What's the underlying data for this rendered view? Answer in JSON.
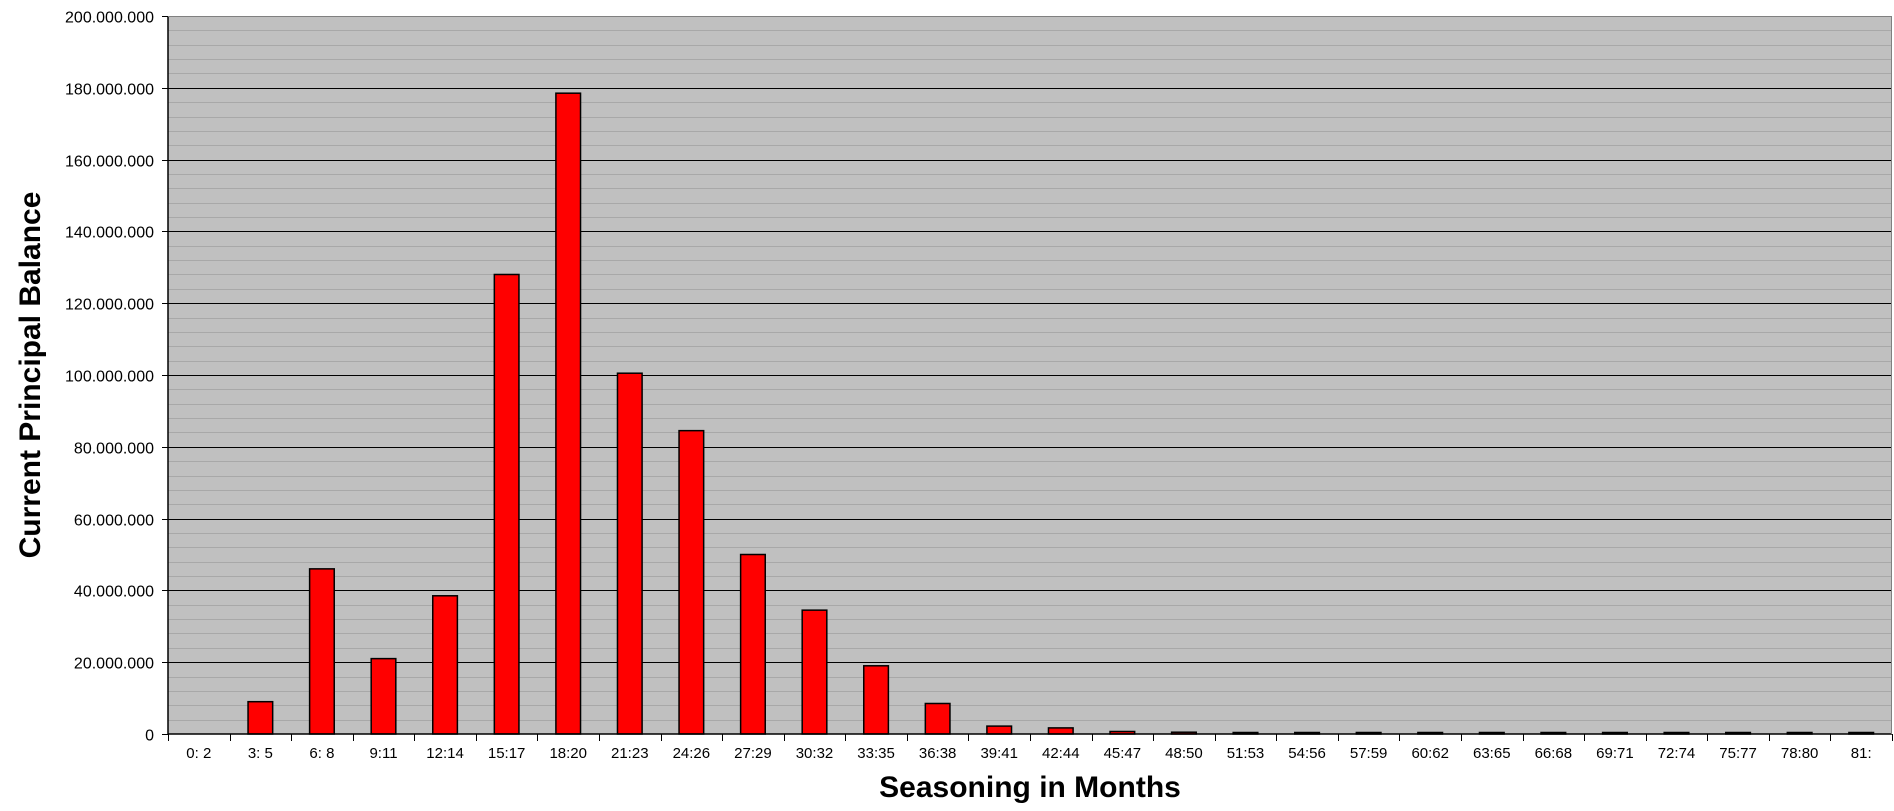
{
  "chart_data": {
    "type": "bar",
    "title": "",
    "xlabel": "Seasoning in Months",
    "ylabel": "Current Principal Balance",
    "ylim": [
      0,
      200000000
    ],
    "y_ticks": [
      0,
      20000000,
      40000000,
      60000000,
      80000000,
      100000000,
      120000000,
      140000000,
      160000000,
      180000000,
      200000000
    ],
    "y_tick_labels": [
      "0",
      "20.000.000",
      "40.000.000",
      "60.000.000",
      "80.000.000",
      "100.000.000",
      "120.000.000",
      "140.000.000",
      "160.000.000",
      "180.000.000",
      "200.000.000"
    ],
    "categories": [
      "0: 2",
      "3: 5",
      "6: 8",
      "9:11",
      "12:14",
      "15:17",
      "18:20",
      "21:23",
      "24:26",
      "27:29",
      "30:32",
      "33:35",
      "36:38",
      "39:41",
      "42:44",
      "45:47",
      "48:50",
      "51:53",
      "54:56",
      "57:59",
      "60:62",
      "63:65",
      "66:68",
      "69:71",
      "72:74",
      "75:77",
      "78:80",
      "81:"
    ],
    "values": [
      0,
      9000000,
      46000000,
      21000000,
      38500000,
      128000000,
      178500000,
      100500000,
      84500000,
      50000000,
      34500000,
      19000000,
      8500000,
      2200000,
      1700000,
      700000,
      500000,
      200000,
      150000,
      150000,
      100000,
      100000,
      100000,
      100000,
      100000,
      100000,
      100000,
      100000
    ],
    "grid": true,
    "legend": "none",
    "colors": {
      "bar": "#ff0000",
      "bar_edge": "#000000",
      "plot_background": "#c0c0c0",
      "major_grid": "#000000",
      "minor_grid": "#a8a8a8"
    }
  }
}
